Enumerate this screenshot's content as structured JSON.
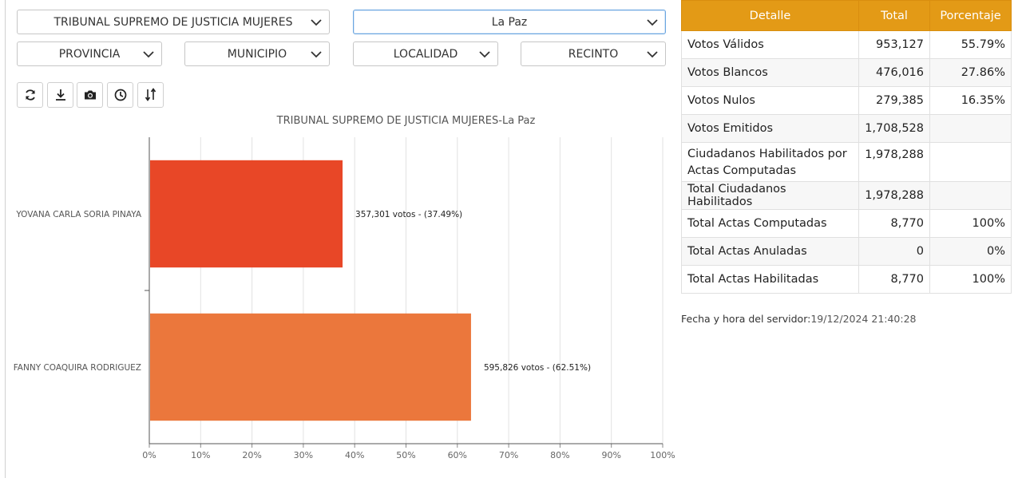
{
  "filters": {
    "election": "TRIBUNAL SUPREMO DE JUSTICIA MUJERES",
    "department": "La Paz",
    "provincia": "PROVINCIA",
    "municipio": "MUNICIPIO",
    "localidad": "LOCALIDAD",
    "recinto": "RECINTO"
  },
  "toolbar": [
    "refresh-icon",
    "download-icon",
    "camera-icon",
    "clock-icon",
    "sort-icon"
  ],
  "chart_data": {
    "type": "bar",
    "orientation": "horizontal",
    "title": "TRIBUNAL SUPREMO DE JUSTICIA MUJERES-La Paz",
    "categories": [
      "YOVANA CARLA SORIA PINAYA",
      "FANNY COAQUIRA RODRIGUEZ"
    ],
    "values": [
      37.49,
      62.51
    ],
    "labels": [
      "357,301 votos - (37.49%)",
      "595,826 votos - (62.51%)"
    ],
    "colors": [
      "#e84727",
      "#eb773c"
    ],
    "xlim": [
      0,
      100
    ],
    "xticks": [
      "0%",
      "10%",
      "20%",
      "30%",
      "40%",
      "50%",
      "60%",
      "70%",
      "80%",
      "90%",
      "100%"
    ],
    "grid": true
  },
  "results": {
    "headers": [
      "Detalle",
      "Total",
      "Porcentaje"
    ],
    "rows": [
      {
        "detail": "Votos Válidos",
        "total": "953,127",
        "pct": "55.79%"
      },
      {
        "detail": "Votos Blancos",
        "total": "476,016",
        "pct": "27.86%"
      },
      {
        "detail": "Votos Nulos",
        "total": "279,385",
        "pct": "16.35%"
      },
      {
        "detail": "Votos Emitidos",
        "total": "1,708,528",
        "pct": ""
      },
      {
        "detail": "Ciudadanos Habilitados por Actas Computadas",
        "total": "1,978,288",
        "pct": ""
      },
      {
        "detail": "Total Ciudadanos Habilitados",
        "total": "1,978,288",
        "pct": ""
      },
      {
        "detail": "Total Actas Computadas",
        "total": "8,770",
        "pct": "100%"
      },
      {
        "detail": "Total Actas Anuladas",
        "total": "0",
        "pct": "0%"
      },
      {
        "detail": "Total Actas Habilitadas",
        "total": "8,770",
        "pct": "100%"
      }
    ]
  },
  "server": {
    "label": "Fecha y hora del servidor:",
    "value": "19/12/2024 21:40:28"
  }
}
